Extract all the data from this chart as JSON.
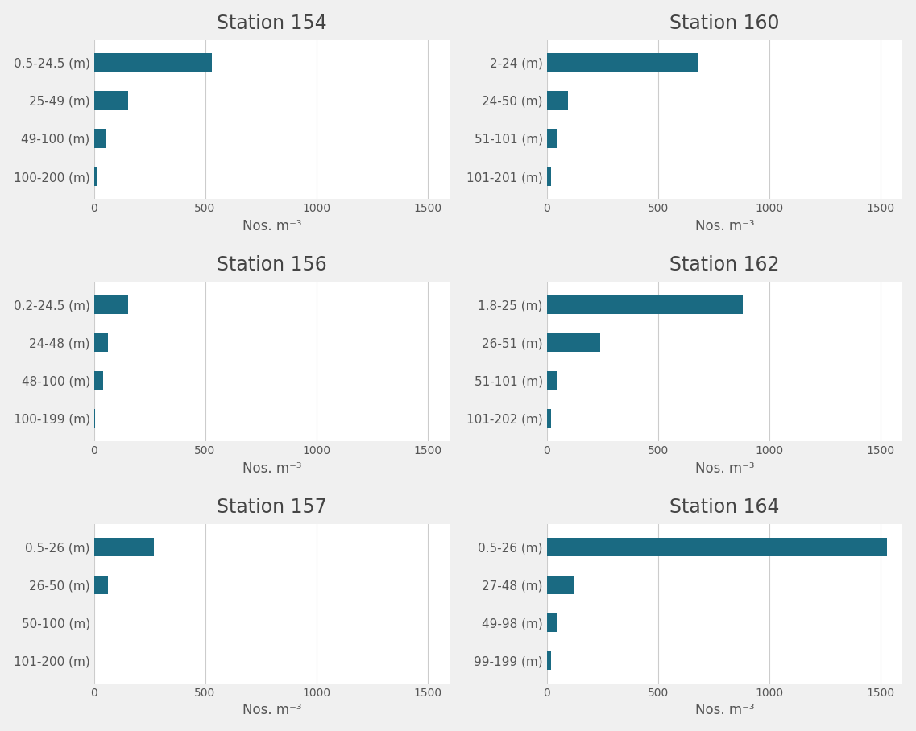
{
  "stations": [
    {
      "title": "Station 154",
      "labels": [
        "0.5-24.5 (m)",
        "25-49 (m)",
        "49-100 (m)",
        "100-200 (m)"
      ],
      "values": [
        530,
        155,
        55,
        18
      ]
    },
    {
      "title": "Station 160",
      "labels": [
        "2-24 (m)",
        "24-50 (m)",
        "51-101 (m)",
        "101-201 (m)"
      ],
      "values": [
        680,
        95,
        45,
        18
      ]
    },
    {
      "title": "Station 156",
      "labels": [
        "0.2-24.5 (m)",
        "24-48 (m)",
        "48-100 (m)",
        "100-199 (m)"
      ],
      "values": [
        155,
        65,
        42,
        5
      ]
    },
    {
      "title": "Station 162",
      "labels": [
        "1.8-25 (m)",
        "26-51 (m)",
        "51-101 (m)",
        "101-202 (m)"
      ],
      "values": [
        880,
        240,
        48,
        18
      ]
    },
    {
      "title": "Station 157",
      "labels": [
        "0.5-26 (m)",
        "26-50 (m)",
        "50-100 (m)",
        "101-200 (m)"
      ],
      "values": [
        270,
        65,
        0,
        0
      ]
    },
    {
      "title": "Station 164",
      "labels": [
        "0.5-26 (m)",
        "27-48 (m)",
        "49-98 (m)",
        "99-199 (m)"
      ],
      "values": [
        1530,
        120,
        48,
        18
      ]
    }
  ],
  "bar_color": "#1a6a82",
  "xlim": [
    0,
    1600
  ],
  "xticks": [
    0,
    500,
    1000,
    1500
  ],
  "xlabel": "Nos. m⁻³",
  "background_color": "#f0f0f0",
  "plot_bg_color": "#ffffff",
  "title_fontsize": 17,
  "label_fontsize": 11,
  "tick_fontsize": 10,
  "xlabel_fontsize": 12,
  "grid_color": "#cccccc"
}
